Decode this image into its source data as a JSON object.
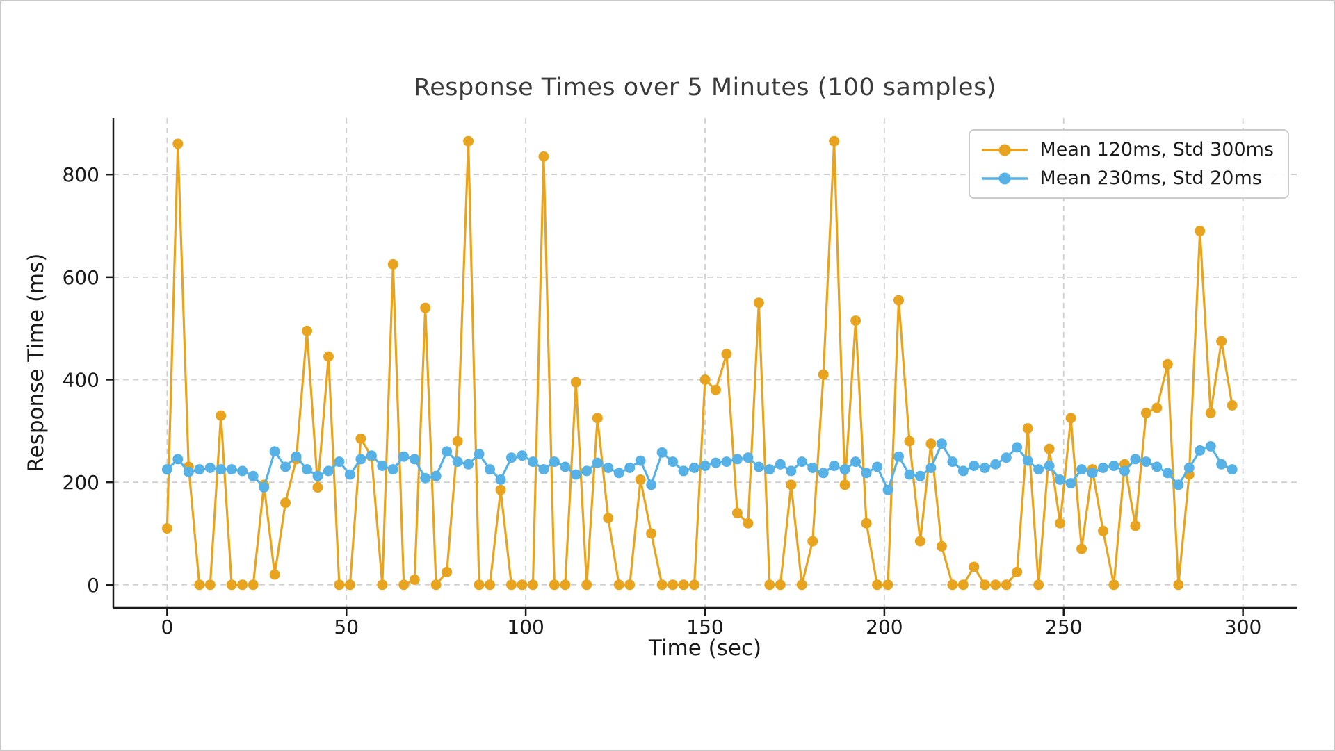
{
  "window": {
    "background": "#ffffff",
    "frame_border_color": "#c9c9c9"
  },
  "chart_data": {
    "type": "line",
    "title": "Response Times over 5 Minutes (100 samples)",
    "xlabel": "Time (sec)",
    "ylabel": "Response Time (ms)",
    "x_ticks": [
      0,
      50,
      100,
      150,
      200,
      250,
      300
    ],
    "y_ticks": [
      0,
      200,
      400,
      600,
      800
    ],
    "xlim": [
      -15,
      315
    ],
    "ylim": [
      -45,
      910
    ],
    "grid": true,
    "grid_color": "#cfcfcf",
    "axis_color": "#1a1a1a",
    "legend_position": "upper right",
    "samples": 100,
    "x_start_sec": 0,
    "x_step_sec": 3,
    "series": [
      {
        "name": "Mean 120ms, Std 300ms",
        "color": "#E8A41F",
        "values": [
          110,
          860,
          230,
          0,
          0,
          330,
          0,
          0,
          0,
          195,
          20,
          160,
          245,
          495,
          190,
          445,
          0,
          0,
          285,
          250,
          0,
          625,
          0,
          10,
          540,
          0,
          25,
          280,
          865,
          0,
          0,
          185,
          0,
          0,
          0,
          835,
          0,
          0,
          395,
          0,
          325,
          130,
          0,
          0,
          205,
          100,
          0,
          0,
          0,
          0,
          400,
          380,
          450,
          140,
          120,
          550,
          0,
          0,
          195,
          0,
          85,
          410,
          865,
          195,
          515,
          120,
          0,
          0,
          555,
          280,
          85,
          275,
          75,
          0,
          0,
          35,
          0,
          0,
          0,
          25,
          305,
          0,
          265,
          120,
          325,
          70,
          225,
          105,
          0,
          235,
          115,
          335,
          345,
          430,
          0,
          215,
          690,
          335,
          475,
          350
        ]
      },
      {
        "name": "Mean 230ms, Std 20ms",
        "color": "#55B1E6",
        "values": [
          225,
          245,
          220,
          225,
          228,
          225,
          225,
          222,
          212,
          190,
          260,
          230,
          250,
          225,
          212,
          222,
          240,
          215,
          245,
          252,
          232,
          225,
          250,
          245,
          208,
          212,
          260,
          240,
          235,
          255,
          225,
          205,
          248,
          252,
          240,
          225,
          240,
          230,
          215,
          222,
          238,
          228,
          218,
          228,
          242,
          195,
          258,
          240,
          222,
          228,
          232,
          238,
          240,
          245,
          248,
          230,
          225,
          235,
          222,
          240,
          228,
          218,
          232,
          225,
          240,
          218,
          230,
          185,
          250,
          215,
          212,
          228,
          275,
          240,
          222,
          232,
          228,
          235,
          248,
          268,
          242,
          225,
          232,
          205,
          198,
          225,
          218,
          228,
          232,
          222,
          245,
          240,
          230,
          218,
          195,
          228,
          262,
          270,
          235,
          225
        ]
      }
    ]
  }
}
